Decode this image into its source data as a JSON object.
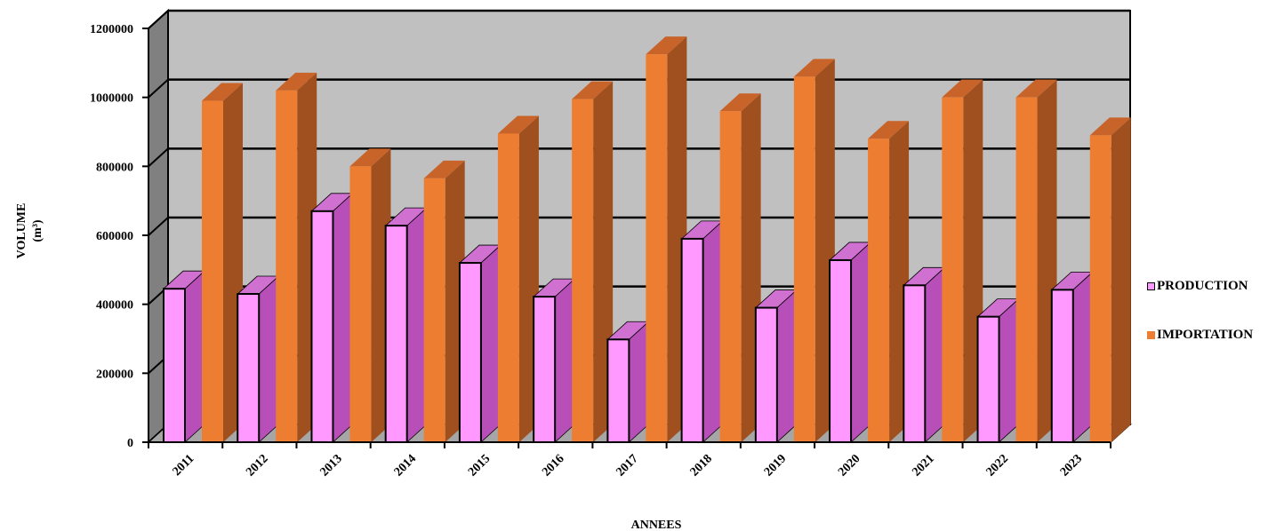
{
  "chart_data": {
    "type": "bar",
    "title": "",
    "xlabel": "ANNEES",
    "ylabel": "VOLUME",
    "ylabel_unit": "(m³)",
    "ylim": [
      0,
      1200000
    ],
    "yticks": [
      "0",
      "200000",
      "400000",
      "600000",
      "800000",
      "1000000",
      "1200000"
    ],
    "grid": true,
    "legend_position": "right",
    "categories": [
      "2011",
      "2012",
      "2013",
      "2014",
      "2015",
      "2016",
      "2017",
      "2018",
      "2019",
      "2020",
      "2021",
      "2022",
      "2023"
    ],
    "series": [
      {
        "name": "PRODUCTION",
        "color": "#ff99ff",
        "values": [
          445000,
          430000,
          670000,
          628000,
          520000,
          422000,
          298000,
          590000,
          390000,
          528000,
          455000,
          364000,
          442000
        ]
      },
      {
        "name": "IMPORTATION",
        "color": "#ed7d31",
        "values": [
          990000,
          1020000,
          800000,
          765000,
          895000,
          995000,
          1125000,
          960000,
          1060000,
          880000,
          1000000,
          1000000,
          890000
        ]
      }
    ]
  }
}
